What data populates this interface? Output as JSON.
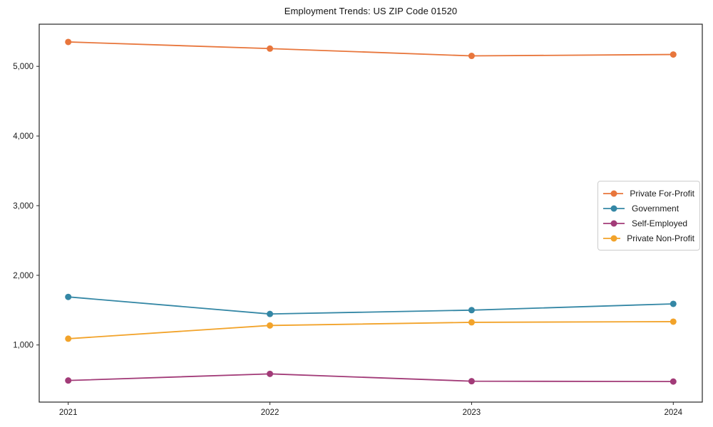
{
  "chart_data": {
    "type": "line",
    "title": "Employment Trends: US ZIP Code 01520",
    "x_categories": [
      "2021",
      "2022",
      "2023",
      "2024"
    ],
    "series": [
      {
        "name": "Private For-Profit",
        "color": "#E8763C",
        "values": [
          5350,
          5255,
          5150,
          5170
        ]
      },
      {
        "name": "Government",
        "color": "#3487A5",
        "values": [
          1690,
          1445,
          1500,
          1590
        ]
      },
      {
        "name": "Self-Employed",
        "color": "#A23B78",
        "values": [
          490,
          585,
          480,
          475
        ]
      },
      {
        "name": "Private Non-Profit",
        "color": "#F2A32A",
        "values": [
          1090,
          1280,
          1325,
          1335
        ]
      }
    ],
    "xlabel": "",
    "ylabel": "",
    "ylim": [
      180,
      5605
    ],
    "ytick_values": [
      1000,
      2000,
      3000,
      4000,
      5000
    ],
    "ytick_labels": [
      "1,000",
      "2,000",
      "3,000",
      "4,000",
      "5,000"
    ],
    "legend_position": "center right",
    "grid": false,
    "axis_color": "#262626",
    "tick_label_color": "#1a1a1a"
  }
}
